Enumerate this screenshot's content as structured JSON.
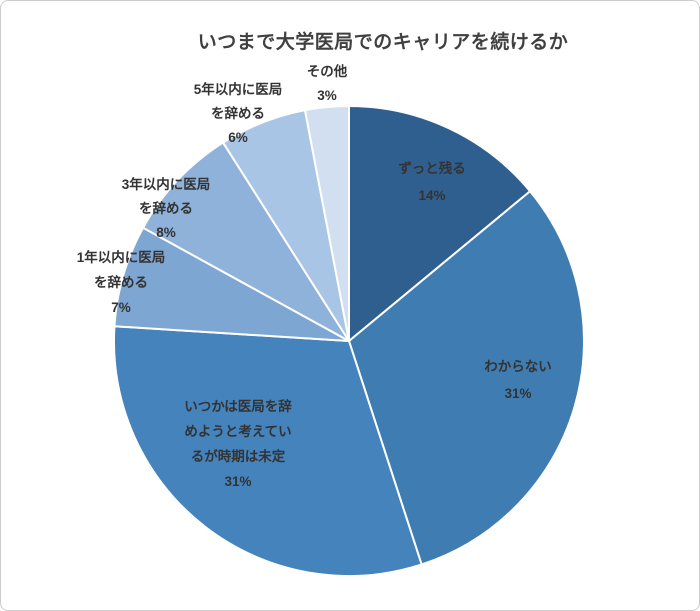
{
  "chart_data": {
    "type": "pie",
    "title": "いつまで大学医局でのキャリアを続けるか",
    "legend_position": "none",
    "start_at": "top",
    "direction": "clockwise",
    "total": 100,
    "categories": [
      "ずっと残る",
      "わからない",
      "いつかは医局を辞めようと考えているが時期は未定",
      "1年以内に医局を辞める",
      "3年以内に医局を辞める",
      "5年以内に医局を辞める",
      "その他"
    ],
    "values": [
      14,
      31,
      31,
      7,
      8,
      6,
      3
    ],
    "slices": [
      {
        "label": "ずっと残る",
        "value": 14,
        "pct": "14%",
        "color": "#2F5F8F",
        "label_position": "inside",
        "label_lines": [
          "ずっと残る",
          "14%"
        ]
      },
      {
        "label": "わからない",
        "value": 31,
        "pct": "31%",
        "color": "#3E7CB2",
        "label_position": "inside",
        "label_lines": [
          "わからない",
          "31%"
        ]
      },
      {
        "label": "いつかは医局を辞めようと考えているが時期は未定",
        "value": 31,
        "pct": "31%",
        "color": "#4583BD",
        "label_position": "inside",
        "label_lines": [
          "いつかは医局を辞",
          "めようと考えてい",
          "るが時期は未定",
          "31%"
        ]
      },
      {
        "label": "1年以内に医局を辞める",
        "value": 7,
        "pct": "7%",
        "color": "#7EA6D2",
        "label_position": "outside",
        "label_lines": [
          "1年以内に医局",
          "を辞める",
          "7%"
        ]
      },
      {
        "label": "3年以内に医局を辞める",
        "value": 8,
        "pct": "8%",
        "color": "#8FB2DB",
        "label_position": "outside",
        "label_lines": [
          "3年以内に医局",
          "を辞める",
          "8%"
        ]
      },
      {
        "label": "5年以内に医局を辞める",
        "value": 6,
        "pct": "6%",
        "color": "#A9C5E6",
        "label_position": "outside",
        "label_lines": [
          "5年以内に医局",
          "を辞める",
          "6%"
        ]
      },
      {
        "label": "その他",
        "value": 3,
        "pct": "3%",
        "color": "#D2DFF1",
        "label_position": "outside",
        "label_lines": [
          "その他",
          "3%"
        ]
      }
    ],
    "colors": {
      "title_text": "#404040",
      "inside_label_text": "#333333",
      "outside_label_text": "#333333",
      "slice_border": "#FFFFFF",
      "background": "#FFFFFF",
      "frame_border": "#CCCCCC"
    }
  }
}
